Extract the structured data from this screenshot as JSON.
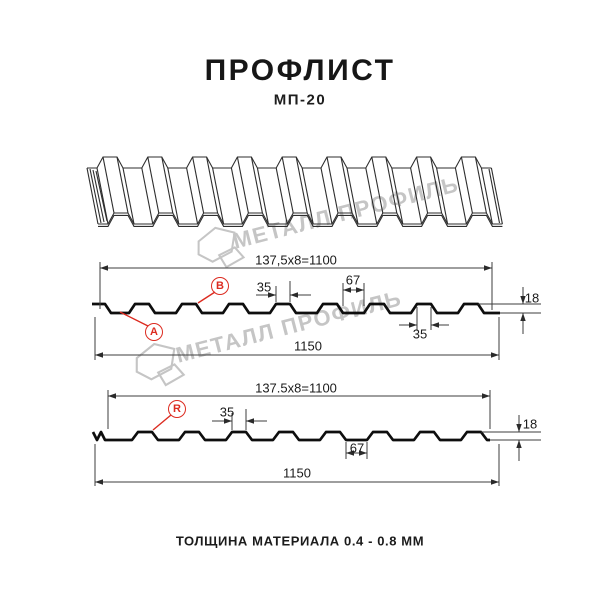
{
  "header": {
    "title": "ПРОФЛИСТ",
    "subtitle": "МП-20"
  },
  "watermark": {
    "text": "МЕТАЛЛ ПРОФИЛЬ"
  },
  "section_top": {
    "working_width_formula": "137,5x8=1100",
    "rib_top_width": "35",
    "valley_width": "67",
    "profile_height": "18",
    "rib_width_bottom": "35",
    "overall_width": "1150",
    "mark_a": "A",
    "mark_b": "B"
  },
  "section_bottom": {
    "working_width_formula": "137.5x8=1100",
    "rib_top_width": "35",
    "profile_height": "18",
    "valley_width": "67",
    "overall_width": "1150",
    "mark_r": "R"
  },
  "footer": {
    "thickness_note": "ТОЛЩИНА МАТЕРИАЛА 0.4 - 0.8 ММ"
  },
  "colors": {
    "accent_red": "#dc2b20",
    "line_thin": "#3d3d3d",
    "line_bold": "#0e0e0e",
    "watermark": "#c5c5c5"
  }
}
